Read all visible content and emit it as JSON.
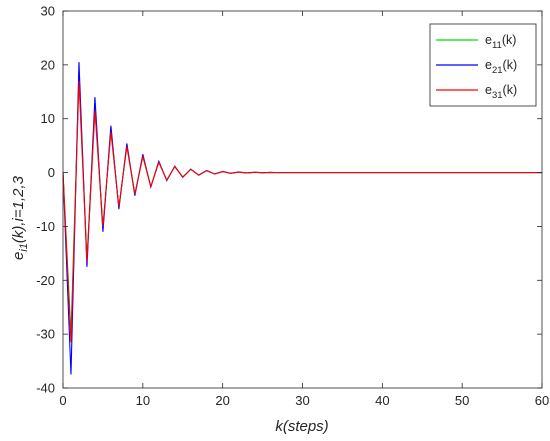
{
  "chart_data": {
    "type": "line",
    "xlabel": "k(steps)",
    "ylabel": {
      "base": "e",
      "subscript": "i1",
      "suffix": "(k),i=1,2,3"
    },
    "xlim": [
      0,
      60
    ],
    "ylim": [
      -40,
      30
    ],
    "xticks": [
      0,
      10,
      20,
      30,
      40,
      50,
      60
    ],
    "yticks": [
      -40,
      -30,
      -20,
      -10,
      0,
      10,
      20,
      30
    ],
    "grid": false,
    "legend_position": "top-right",
    "series": [
      {
        "name": "e11(k)",
        "label_base": "e",
        "label_sub": "11",
        "label_suffix": "(k)",
        "color": "#00e000",
        "x": [
          0,
          1,
          2,
          3,
          4,
          5,
          6,
          7,
          8,
          9,
          10,
          11,
          12,
          13,
          14,
          15,
          16,
          17,
          18,
          19,
          20,
          21,
          22,
          23,
          24,
          25,
          26,
          27,
          28,
          30,
          35,
          40,
          45,
          50,
          55,
          60
        ],
        "y": [
          0,
          -30,
          18,
          -16,
          12,
          -10.5,
          8,
          -6.5,
          5,
          -4,
          3,
          -2.6,
          2,
          -1.4,
          1.1,
          -0.8,
          0.6,
          -0.45,
          0.35,
          -0.25,
          0.18,
          -0.13,
          0.09,
          -0.06,
          0.04,
          -0.03,
          0.02,
          -0.01,
          0,
          0,
          0,
          0,
          0,
          0,
          0,
          0
        ]
      },
      {
        "name": "e21(k)",
        "label_base": "e",
        "label_sub": "21",
        "label_suffix": "(k)",
        "color": "#0000ff",
        "x": [
          0,
          1,
          2,
          3,
          4,
          5,
          6,
          7,
          8,
          9,
          10,
          11,
          12,
          13,
          14,
          15,
          16,
          17,
          18,
          19,
          20,
          21,
          22,
          23,
          24,
          25,
          26,
          27,
          28,
          30,
          35,
          40,
          45,
          50,
          55,
          60
        ],
        "y": [
          0,
          -37.5,
          20.5,
          -17.5,
          14,
          -11,
          8.7,
          -6.8,
          5.4,
          -4.3,
          3.4,
          -2.7,
          2.1,
          -1.5,
          1.2,
          -0.9,
          0.65,
          -0.5,
          0.38,
          -0.28,
          0.2,
          -0.14,
          0.1,
          -0.07,
          0.05,
          -0.03,
          0.02,
          -0.01,
          0,
          0,
          0,
          0,
          0,
          0,
          0,
          0
        ]
      },
      {
        "name": "e31(k)",
        "label_base": "e",
        "label_sub": "31",
        "label_suffix": "(k)",
        "color": "#ff0000",
        "x": [
          0,
          1,
          2,
          3,
          4,
          5,
          6,
          7,
          8,
          9,
          10,
          11,
          12,
          13,
          14,
          15,
          16,
          17,
          18,
          19,
          20,
          21,
          22,
          23,
          24,
          25,
          26,
          27,
          28,
          30,
          35,
          40,
          45,
          50,
          55,
          60
        ],
        "y": [
          0,
          -31.5,
          17,
          -16.5,
          11.5,
          -10,
          7.5,
          -6.3,
          4.8,
          -4,
          3,
          -2.6,
          1.9,
          -1.4,
          1.1,
          -0.85,
          0.6,
          -0.46,
          0.35,
          -0.26,
          0.19,
          -0.13,
          0.09,
          -0.06,
          0.04,
          -0.03,
          0.02,
          -0.01,
          0,
          0,
          0,
          0,
          0,
          0,
          0,
          0
        ]
      }
    ]
  }
}
